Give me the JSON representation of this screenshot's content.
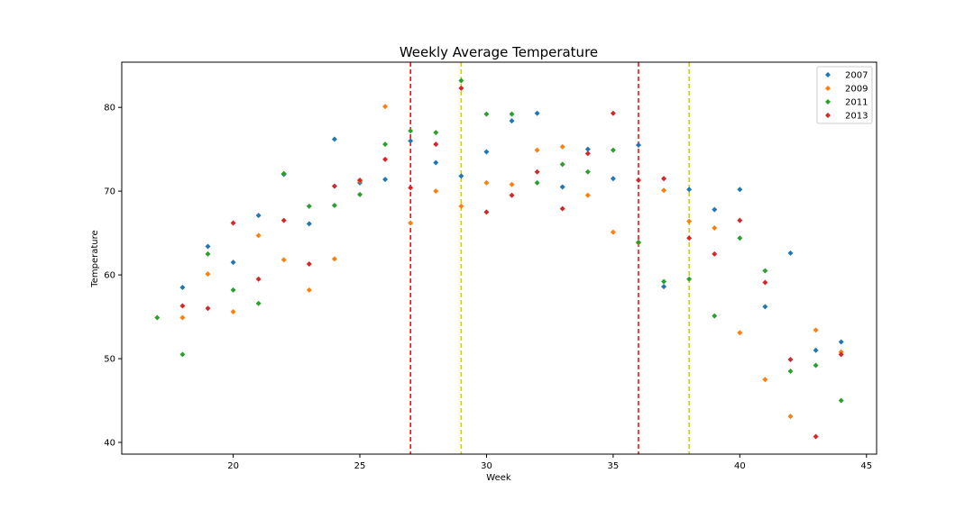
{
  "chart_data": {
    "type": "scatter",
    "title": "Weekly Average Temperature",
    "xlabel": "Week",
    "ylabel": "Temperature",
    "xlim": [
      15.6,
      45.4
    ],
    "ylim": [
      38.6,
      85.4
    ],
    "xticks": [
      20,
      25,
      30,
      35,
      40,
      45
    ],
    "yticks": [
      40,
      50,
      60,
      70,
      80
    ],
    "grid": false,
    "legend_position": "top-right",
    "marker": "diamond",
    "series": [
      {
        "name": "2007",
        "color": "#1f77b4",
        "x": [
          18,
          19,
          20,
          21,
          22,
          23,
          24,
          25,
          26,
          27,
          28,
          29,
          30,
          31,
          32,
          33,
          34,
          35,
          36,
          37,
          38,
          39,
          40,
          41,
          42,
          43,
          44
        ],
        "y": [
          58.5,
          63.4,
          61.5,
          67.1,
          72.0,
          66.1,
          76.2,
          71.0,
          71.4,
          76.0,
          73.4,
          71.8,
          74.7,
          78.4,
          79.3,
          70.5,
          75.0,
          71.5,
          75.5,
          58.6,
          70.2,
          67.8,
          70.2,
          56.2,
          62.6,
          51.0,
          52.0
        ]
      },
      {
        "name": "2009",
        "color": "#ff7f0e",
        "x": [
          18,
          19,
          20,
          21,
          22,
          23,
          24,
          25,
          26,
          27,
          28,
          29,
          30,
          31,
          32,
          33,
          34,
          35,
          36,
          37,
          38,
          39,
          40,
          41,
          42,
          43,
          44
        ],
        "y": [
          54.9,
          60.1,
          55.6,
          64.7,
          61.8,
          58.2,
          61.9,
          71.2,
          80.1,
          66.2,
          70.0,
          68.2,
          71.0,
          70.8,
          74.9,
          75.3,
          69.5,
          65.1,
          63.8,
          70.1,
          66.4,
          65.6,
          53.1,
          47.5,
          43.1,
          53.4,
          50.8
        ]
      },
      {
        "name": "2011",
        "color": "#2ca02c",
        "x": [
          17,
          18,
          19,
          20,
          21,
          22,
          23,
          24,
          25,
          26,
          27,
          28,
          29,
          30,
          31,
          32,
          33,
          34,
          35,
          36,
          37,
          38,
          39,
          40,
          41,
          42,
          43,
          44
        ],
        "y": [
          54.9,
          50.5,
          62.5,
          58.2,
          56.6,
          72.1,
          68.2,
          68.3,
          69.6,
          75.6,
          77.2,
          77.0,
          83.2,
          79.2,
          79.2,
          71.0,
          73.2,
          72.3,
          74.9,
          63.9,
          59.2,
          59.5,
          55.1,
          64.4,
          60.5,
          48.5,
          49.2,
          45.0
        ]
      },
      {
        "name": "2013",
        "color": "#d62728",
        "x": [
          18,
          19,
          20,
          21,
          22,
          23,
          24,
          25,
          26,
          27,
          28,
          29,
          30,
          31,
          32,
          33,
          34,
          35,
          36,
          37,
          38,
          39,
          40,
          41,
          42,
          43,
          44
        ],
        "y": [
          56.3,
          56.0,
          66.2,
          59.5,
          66.5,
          61.3,
          70.6,
          71.3,
          73.8,
          70.4,
          75.6,
          82.3,
          67.5,
          69.5,
          72.3,
          67.9,
          74.5,
          79.3,
          71.3,
          71.5,
          64.4,
          62.5,
          66.5,
          59.1,
          49.9,
          40.7,
          50.5
        ]
      }
    ],
    "vlines": [
      {
        "x": 27,
        "color": "#ff0000",
        "style": "dashed"
      },
      {
        "x": 29,
        "color": "#cccc00",
        "style": "dashed"
      },
      {
        "x": 36,
        "color": "#ff0000",
        "style": "dashed"
      },
      {
        "x": 38,
        "color": "#cccc00",
        "style": "dashed"
      }
    ]
  }
}
